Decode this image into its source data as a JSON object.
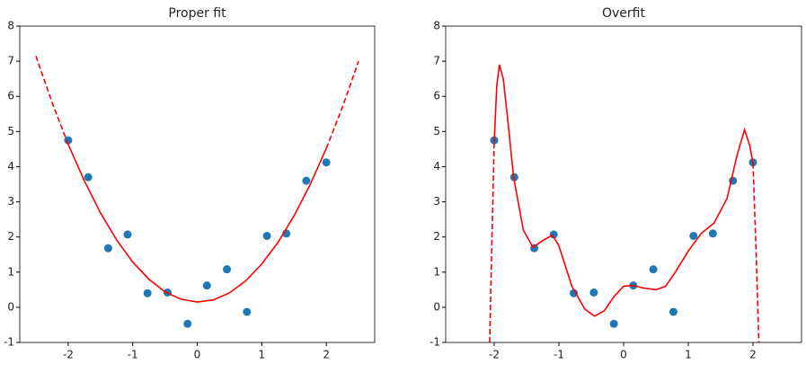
{
  "chart_data": [
    {
      "type": "scatter",
      "title": "Proper fit",
      "xlim": [
        -2.75,
        2.75
      ],
      "ylim": [
        -1,
        8
      ],
      "xticks": [
        -2,
        -1,
        0,
        1,
        2
      ],
      "yticks": [
        -1,
        0,
        1,
        2,
        3,
        4,
        5,
        6,
        7,
        8
      ],
      "series": [
        {
          "type": "scatter",
          "color": "#1f77b4",
          "x": [
            -2,
            -1.69,
            -1.38,
            -1.08,
            -0.77,
            -0.46,
            -0.15,
            0.15,
            0.46,
            0.77,
            1.08,
            1.38,
            1.69,
            2.0
          ],
          "values": [
            4.75,
            3.7,
            1.68,
            2.07,
            0.4,
            0.42,
            -0.47,
            0.62,
            1.08,
            -0.13,
            2.03,
            2.1,
            3.6,
            4.12
          ]
        },
        {
          "type": "line",
          "color": "red",
          "linestyle": "dashed",
          "x": [
            -2.5,
            -2.25,
            -2
          ],
          "values": [
            7.15,
            5.83,
            4.64
          ]
        },
        {
          "type": "line",
          "color": "red",
          "linestyle": "solid",
          "x": [
            -2,
            -1.75,
            -1.5,
            -1.25,
            -1,
            -0.75,
            -0.5,
            -0.25,
            0,
            0.25,
            0.5,
            0.75,
            1,
            1.25,
            1.5,
            1.75,
            2
          ],
          "values": [
            4.64,
            3.6,
            2.69,
            1.92,
            1.29,
            0.8,
            0.44,
            0.23,
            0.15,
            0.21,
            0.41,
            0.75,
            1.23,
            1.84,
            2.6,
            3.49,
            4.52
          ]
        },
        {
          "type": "line",
          "color": "red",
          "linestyle": "dashed",
          "x": [
            2,
            2.25,
            2.5
          ],
          "values": [
            4.52,
            5.69,
            7.0
          ]
        }
      ]
    },
    {
      "type": "scatter",
      "title": "Overfit",
      "xlim": [
        -2.75,
        2.75
      ],
      "ylim": [
        -1,
        8
      ],
      "xticks": [
        -2,
        -1,
        0,
        1,
        2
      ],
      "yticks": [
        -1,
        0,
        1,
        2,
        3,
        4,
        5,
        6,
        7,
        8
      ],
      "series": [
        {
          "type": "scatter",
          "color": "#1f77b4",
          "x": [
            -2,
            -1.69,
            -1.38,
            -1.08,
            -0.77,
            -0.46,
            -0.15,
            0.15,
            0.46,
            0.77,
            1.08,
            1.38,
            1.69,
            2.0
          ],
          "values": [
            4.75,
            3.7,
            1.68,
            2.07,
            0.4,
            0.42,
            -0.47,
            0.62,
            1.08,
            -0.13,
            2.03,
            2.1,
            3.6,
            4.12
          ]
        },
        {
          "type": "line",
          "color": "red",
          "linestyle": "dashed",
          "x": [
            -2.07,
            -2.04,
            -2
          ],
          "values": [
            -1,
            1.5,
            4.7
          ]
        },
        {
          "type": "line",
          "color": "red",
          "linestyle": "solid",
          "x": [
            -2,
            -1.96,
            -1.92,
            -1.86,
            -1.8,
            -1.7,
            -1.55,
            -1.4,
            -1.25,
            -1.1,
            -1.0,
            -0.8,
            -0.6,
            -0.45,
            -0.3,
            -0.15,
            0,
            0.15,
            0.3,
            0.5,
            0.65,
            0.8,
            1.0,
            1.2,
            1.4,
            1.6,
            1.75,
            1.87,
            1.95,
            2.0
          ],
          "values": [
            4.7,
            6.3,
            6.9,
            6.5,
            5.5,
            3.7,
            2.2,
            1.7,
            1.9,
            2.05,
            1.75,
            0.6,
            -0.05,
            -0.25,
            -0.1,
            0.3,
            0.6,
            0.62,
            0.55,
            0.5,
            0.6,
            1.0,
            1.6,
            2.1,
            2.4,
            3.1,
            4.3,
            5.05,
            4.6,
            4.1
          ]
        },
        {
          "type": "line",
          "color": "red",
          "linestyle": "dashed",
          "x": [
            2.0,
            2.05,
            2.09
          ],
          "values": [
            4.1,
            1.5,
            -1
          ]
        }
      ]
    }
  ]
}
